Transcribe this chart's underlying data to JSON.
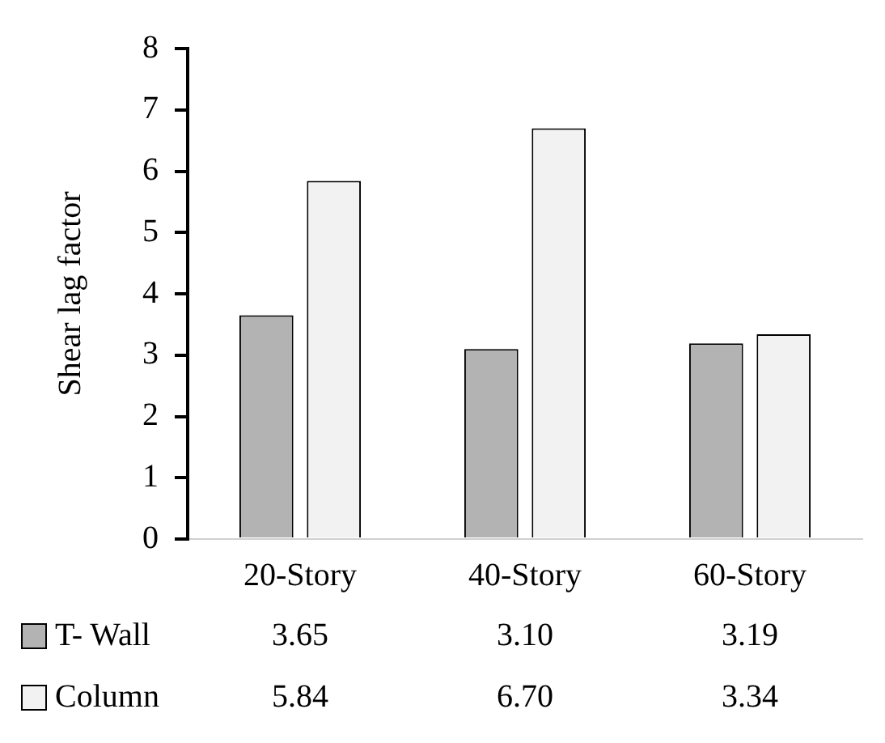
{
  "chart_data": {
    "type": "bar",
    "ylabel": "Shear lag factor",
    "categories": [
      "20-Story",
      "40-Story",
      "60-Story"
    ],
    "series": [
      {
        "name": "T- Wall",
        "color": "#b3b3b3",
        "values": [
          3.65,
          3.1,
          3.19
        ],
        "value_labels": [
          "3.65",
          "3.10",
          "3.19"
        ]
      },
      {
        "name": "Column",
        "color": "#f2f2f2",
        "values": [
          5.84,
          6.7,
          3.34
        ],
        "value_labels": [
          "5.84",
          "6.70",
          "3.34"
        ]
      }
    ],
    "ylim": [
      0,
      8
    ],
    "yticks": [
      0,
      1,
      2,
      3,
      4,
      5,
      6,
      7,
      8
    ],
    "grid": false,
    "legend": "bottom"
  }
}
